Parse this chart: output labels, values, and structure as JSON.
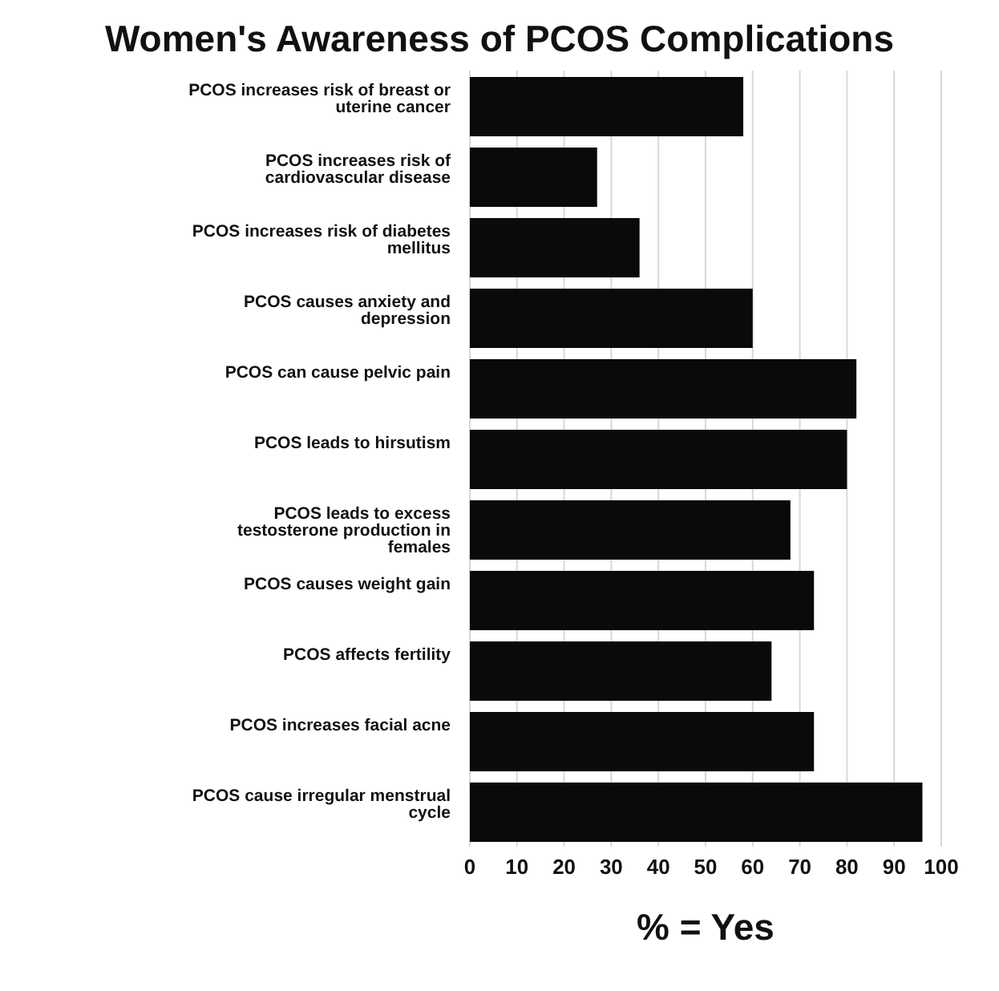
{
  "chart_data": {
    "type": "bar",
    "orientation": "horizontal",
    "title": "Women's Awareness of PCOS Complications",
    "xlabel": "% = Yes",
    "categories": [
      "PCOS increases risk of breast or uterine cancer",
      "PCOS increases risk of cardiovascular disease",
      "PCOS increases risk of diabetes mellitus",
      "PCOS causes anxiety and depression",
      "PCOS can cause pelvic pain",
      "PCOS leads to hirsutism",
      "PCOS leads to excess testosterone production in females",
      "PCOS causes weight gain",
      "PCOS affects fertility",
      "PCOS increases facial acne",
      "PCOS cause irregular menstrual cycle"
    ],
    "values": [
      58,
      27,
      36,
      60,
      82,
      80,
      68,
      73,
      64,
      73,
      96
    ],
    "color": "#0a0a0a",
    "xlim": [
      0,
      100
    ],
    "xticks": [
      0,
      10,
      20,
      30,
      40,
      50,
      60,
      70,
      80,
      90,
      100
    ],
    "grid": "x"
  }
}
